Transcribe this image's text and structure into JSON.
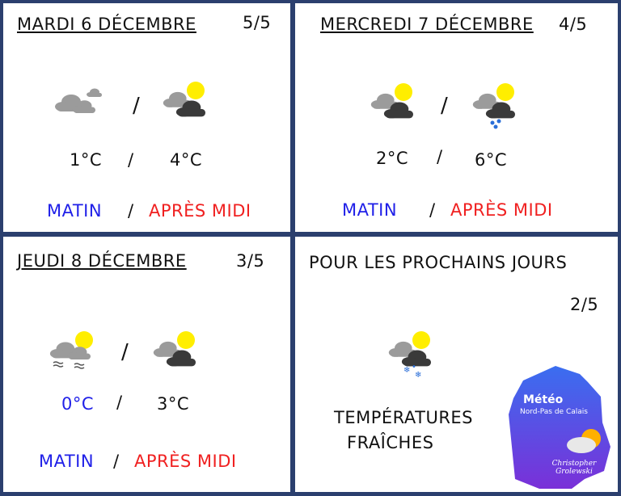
{
  "days": [
    {
      "title": "MARDI 6 DÉCEMBRE",
      "rating": "5/5",
      "temp_morning": "1°C",
      "temp_afternoon": "4°C",
      "icon_morning": "cloudy-icon",
      "icon_afternoon": "sun-cloud-icon"
    },
    {
      "title": "MERCREDI 7 DÉCEMBRE",
      "rating": "4/5",
      "temp_morning": "2°C",
      "temp_afternoon": "6°C",
      "icon_morning": "sun-cloud-icon",
      "icon_afternoon": "sun-cloud-rain-icon"
    },
    {
      "title": "JEUDI 8 DÉCEMBRE",
      "rating": "3/5",
      "temp_morning": "0°C",
      "temp_afternoon": "3°C",
      "icon_morning": "sun-cloud-fog-icon",
      "icon_afternoon": "sun-cloud-icon"
    }
  ],
  "separator": "/",
  "labels": {
    "morning": "MATIN",
    "afternoon": "APRÈS MIDI"
  },
  "outlook": {
    "title": "POUR LES PROCHAINS JOURS",
    "rating": "2/5",
    "icon": "sun-cloud-snow-icon",
    "line1": "TEMPÉRATURES",
    "line2": "FRAÎCHES"
  },
  "logo": {
    "title": "Météo",
    "subtitle": "Nord-Pas de Calais",
    "author": "Christopher Grolewski"
  },
  "colors": {
    "border": "#2b3f6e",
    "morning": "#2020e8",
    "afternoon": "#f02020",
    "cold_temp": "#2020e8",
    "sun": "#ffee00"
  }
}
